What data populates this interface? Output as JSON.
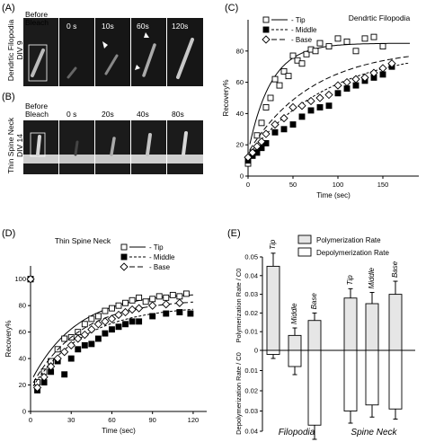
{
  "panels": {
    "A": {
      "label": "(A)",
      "row_label_line1": "Dendrtic Filopodia",
      "row_label_line2": "DIV 9",
      "frames": [
        "Before Bleach",
        "0 s",
        "10s",
        "60s",
        "120s"
      ]
    },
    "B": {
      "label": "(B)",
      "row_label_line1": "Thin Spine Neck",
      "row_label_line2": "DIV 14",
      "frames": [
        "Before Bleach",
        "0 s",
        "20s",
        "40s",
        "80s"
      ]
    },
    "C": {
      "label": "(C)"
    },
    "D": {
      "label": "(D)"
    },
    "E": {
      "label": "(E)"
    }
  },
  "chart_data": [
    {
      "id": "C",
      "type": "scatter",
      "title": "Dendrtic Filopodia",
      "xlabel": "Time (sec)",
      "ylabel": "Recovery%",
      "xlim": [
        0,
        190
      ],
      "ylim": [
        0,
        100
      ],
      "xticks": [
        0,
        50,
        100,
        150
      ],
      "yticks": [
        0,
        20,
        40,
        60,
        80
      ],
      "legend": [
        "Tip",
        "Middle",
        "Base"
      ],
      "legend_position": "top-left",
      "series": [
        {
          "name": "Tip",
          "marker": "open-square",
          "line": "solid",
          "x": [
            0,
            5,
            10,
            15,
            20,
            25,
            30,
            35,
            40,
            45,
            50,
            55,
            60,
            65,
            70,
            75,
            80,
            90,
            100,
            110,
            120,
            130,
            140,
            150
          ],
          "y": [
            8,
            15,
            26,
            34,
            44,
            50,
            62,
            58,
            67,
            64,
            77,
            74,
            72,
            78,
            81,
            80,
            85,
            83,
            88,
            86,
            80,
            88,
            89,
            83
          ],
          "fit": {
            "plateau": 85,
            "k": 0.04
          }
        },
        {
          "name": "Middle",
          "marker": "filled-square",
          "line": "dashed",
          "x": [
            0,
            5,
            10,
            15,
            20,
            30,
            40,
            50,
            60,
            70,
            80,
            90,
            100,
            110,
            120,
            130,
            140,
            150,
            160
          ],
          "y": [
            10,
            13,
            15,
            18,
            21,
            28,
            30,
            33,
            38,
            42,
            44,
            45,
            53,
            56,
            58,
            61,
            63,
            65,
            70
          ],
          "fit": {
            "plateau": 82,
            "k": 0.011
          }
        },
        {
          "name": "Base",
          "marker": "open-diamond",
          "line": "long-dash",
          "x": [
            0,
            5,
            10,
            15,
            20,
            30,
            40,
            50,
            60,
            70,
            80,
            90,
            100,
            110,
            120,
            130,
            140,
            150,
            160
          ],
          "y": [
            12,
            15,
            19,
            22,
            27,
            33,
            37,
            44,
            45,
            48,
            50,
            52,
            58,
            60,
            62,
            63,
            66,
            69,
            72
          ],
          "fit": {
            "plateau": 82,
            "k": 0.014
          }
        }
      ]
    },
    {
      "id": "D",
      "type": "scatter",
      "title": "Thin Spine Neck",
      "xlabel": "Time (sec)",
      "ylabel": "Recovery%",
      "xlim": [
        0,
        130
      ],
      "ylim": [
        0,
        110
      ],
      "xticks": [
        0,
        30,
        60,
        90,
        120
      ],
      "yticks": [
        0,
        20,
        40,
        60,
        80,
        100
      ],
      "legend": [
        "Tip",
        "Middle",
        "Base"
      ],
      "legend_position": "top-right",
      "series": [
        {
          "name": "Tip",
          "marker": "open-square",
          "line": "solid",
          "x": [
            0,
            5,
            10,
            15,
            20,
            25,
            30,
            35,
            40,
            45,
            50,
            55,
            60,
            65,
            70,
            75,
            80,
            85,
            90,
            95,
            100,
            105,
            110,
            115
          ],
          "y": [
            100,
            22,
            30,
            38,
            47,
            55,
            56,
            60,
            66,
            70,
            72,
            76,
            78,
            80,
            82,
            84,
            86,
            83,
            85,
            87,
            86,
            88,
            87,
            89
          ],
          "fit": {
            "plateau": 90,
            "k": 0.03
          }
        },
        {
          "name": "Middle",
          "marker": "filled-square",
          "line": "dashed",
          "x": [
            0,
            5,
            10,
            15,
            20,
            25,
            30,
            35,
            40,
            45,
            50,
            55,
            60,
            65,
            70,
            75,
            80,
            90,
            100,
            110,
            118
          ],
          "y": [
            100,
            16,
            22,
            30,
            38,
            28,
            40,
            47,
            50,
            51,
            55,
            59,
            62,
            64,
            66,
            68,
            68,
            72,
            74,
            75,
            74
          ],
          "fit": {
            "plateau": 80,
            "k": 0.026
          }
        },
        {
          "name": "Base",
          "marker": "open-diamond",
          "line": "long-dash",
          "x": [
            0,
            5,
            10,
            15,
            20,
            25,
            30,
            35,
            40,
            45,
            50,
            55,
            60,
            65,
            70,
            75,
            80,
            90,
            100,
            110
          ],
          "y": [
            100,
            18,
            26,
            34,
            40,
            45,
            50,
            55,
            58,
            62,
            66,
            68,
            70,
            73,
            75,
            77,
            78,
            80,
            81,
            82
          ],
          "fit": {
            "plateau": 85,
            "k": 0.028
          }
        }
      ]
    },
    {
      "id": "E",
      "type": "bar",
      "legend": [
        "Polymerization Rate",
        "Depolymerization Rate"
      ],
      "legend_position": "top",
      "ylabel_top": "Polymerization Rate / C0",
      "ylabel_bottom": "Depolymerization Rate / C0",
      "yticks_top": [
        "0.05",
        "0.04",
        "0.03",
        "0.02",
        "0.01",
        "0"
      ],
      "yticks_bottom": [
        "0.01",
        "0.02",
        "0.03",
        "0.04"
      ],
      "ylim_top": [
        0,
        0.05
      ],
      "ylim_bottom": [
        0,
        0.04
      ],
      "categories": [
        "Tip",
        "Middle",
        "Base",
        "Tip",
        "Middle",
        "Base"
      ],
      "groups": [
        "Filopodia",
        "Spine Neck"
      ],
      "series": [
        {
          "name": "Polymerization Rate",
          "color": "#e6e6e6",
          "values": [
            0.045,
            0.008,
            0.016,
            0.028,
            0.025,
            0.03
          ],
          "errors": [
            0.007,
            0.004,
            0.004,
            0.005,
            0.006,
            0.007
          ]
        },
        {
          "name": "Depolymerization Rate",
          "color": "#ffffff",
          "values": [
            0.002,
            0.008,
            0.037,
            0.03,
            0.027,
            0.029
          ],
          "errors": [
            0.002,
            0.004,
            0.007,
            0.006,
            0.006,
            0.005
          ]
        }
      ]
    }
  ]
}
